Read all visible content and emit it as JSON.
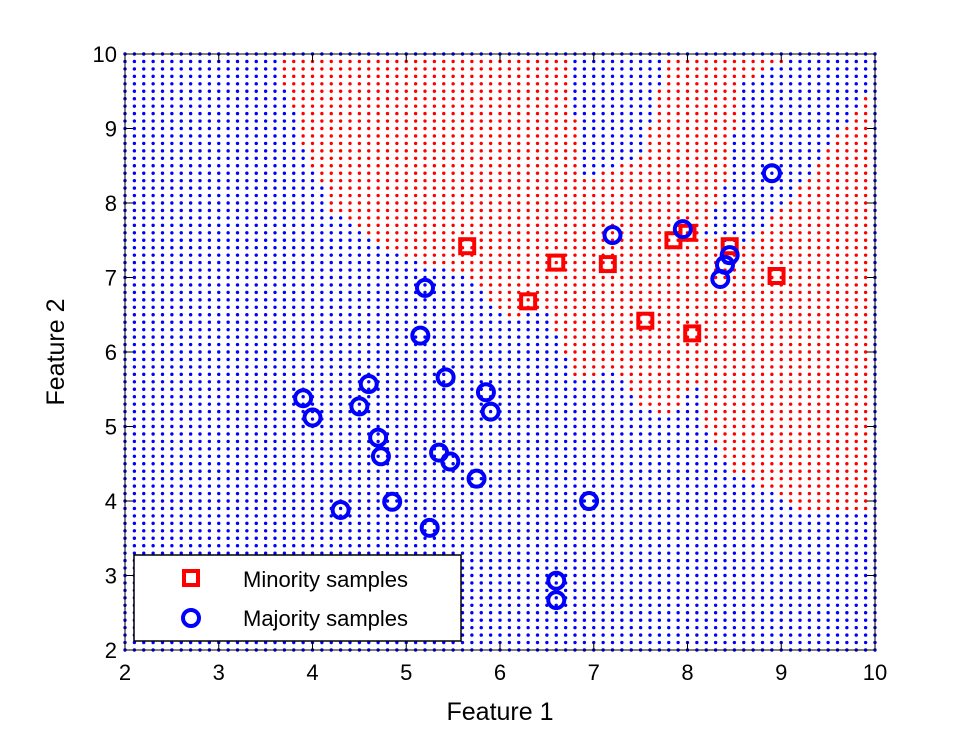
{
  "chart_data": {
    "type": "scatter",
    "xlabel": "Feature 1",
    "ylabel": "Feature 2",
    "xlim": [
      2,
      10
    ],
    "ylim": [
      2,
      10
    ],
    "xticks": [
      2,
      3,
      4,
      5,
      6,
      7,
      8,
      9,
      10
    ],
    "yticks": [
      2,
      3,
      4,
      5,
      6,
      7,
      8,
      9,
      10
    ],
    "grid": false,
    "legend": {
      "placement": "bottom-left"
    },
    "background": {
      "description": "decision-region dot grid",
      "step": 0.1,
      "majority_color": "#0000ff",
      "minority_color": "#ff0000",
      "minority_regions": [
        [
          [
            3.6,
            10
          ],
          [
            7.8,
            10
          ],
          [
            7.5,
            8.6
          ],
          [
            6.9,
            8.3
          ],
          [
            6.7,
            10
          ],
          [
            9.2,
            10
          ],
          [
            8.6,
            9.6
          ],
          [
            8.4,
            8.2
          ],
          [
            8.2,
            7.6
          ],
          [
            8.6,
            7.4
          ],
          [
            9.2,
            8.2
          ],
          [
            10,
            9.6
          ],
          [
            10,
            6.7
          ],
          [
            9.2,
            6.4
          ],
          [
            8.6,
            6.0
          ],
          [
            8.0,
            5.4
          ],
          [
            7.8,
            5.1
          ],
          [
            7.5,
            5.3
          ],
          [
            7.2,
            5.8
          ],
          [
            6.8,
            5.6
          ],
          [
            6.5,
            6.6
          ],
          [
            6.1,
            6.4
          ],
          [
            5.7,
            7.0
          ],
          [
            5.2,
            7.2
          ],
          [
            4.8,
            7.4
          ],
          [
            4.2,
            7.9
          ],
          [
            3.9,
            8.8
          ]
        ],
        [
          [
            7.9,
            7.8
          ],
          [
            8.2,
            5.0
          ],
          [
            8.5,
            4.4
          ],
          [
            9.2,
            3.9
          ],
          [
            10,
            3.8
          ],
          [
            10,
            6.7
          ],
          [
            9.2,
            6.4
          ],
          [
            8.6,
            6.0
          ],
          [
            8.2,
            6.2
          ]
        ]
      ]
    },
    "series": [
      {
        "name": "Minority samples",
        "marker": "square",
        "color": "#ff0000",
        "points": [
          [
            5.65,
            7.42
          ],
          [
            6.3,
            6.68
          ],
          [
            6.6,
            7.2
          ],
          [
            7.15,
            7.18
          ],
          [
            7.55,
            6.42
          ],
          [
            7.85,
            7.5
          ],
          [
            8.0,
            7.6
          ],
          [
            8.05,
            6.25
          ],
          [
            8.45,
            7.42
          ],
          [
            8.95,
            7.02
          ]
        ]
      },
      {
        "name": "Majority samples",
        "marker": "circle",
        "color": "#0000ff",
        "points": [
          [
            3.9,
            5.38
          ],
          [
            4.0,
            5.12
          ],
          [
            4.3,
            3.88
          ],
          [
            4.5,
            5.27
          ],
          [
            4.6,
            5.57
          ],
          [
            4.7,
            4.85
          ],
          [
            4.73,
            4.6
          ],
          [
            4.85,
            3.99
          ],
          [
            5.15,
            6.22
          ],
          [
            5.2,
            6.86
          ],
          [
            5.25,
            3.64
          ],
          [
            5.35,
            4.65
          ],
          [
            5.42,
            5.66
          ],
          [
            5.47,
            4.53
          ],
          [
            5.75,
            4.3
          ],
          [
            5.85,
            5.46
          ],
          [
            5.9,
            5.2
          ],
          [
            6.6,
            2.93
          ],
          [
            6.6,
            2.67
          ],
          [
            6.95,
            4.0
          ],
          [
            7.2,
            7.57
          ],
          [
            7.95,
            7.65
          ],
          [
            8.35,
            6.98
          ],
          [
            8.4,
            7.17
          ],
          [
            8.45,
            7.3
          ],
          [
            8.9,
            8.4
          ]
        ]
      }
    ]
  }
}
